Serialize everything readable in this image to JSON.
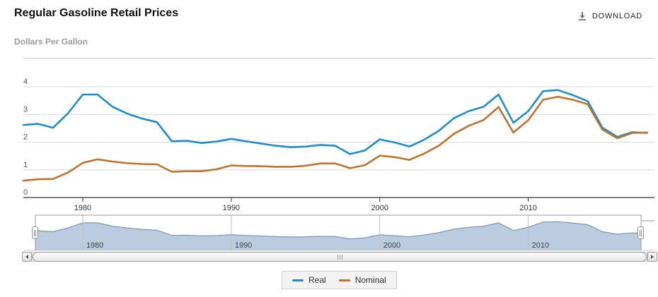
{
  "header": {
    "title": "Regular Gasoline Retail Prices",
    "subtitle": "Dollars Per Gallon",
    "download_label": "DOWNLOAD"
  },
  "colors": {
    "real_line": "#1d8ecd",
    "nominal_line": "#bf732d",
    "navigator_fill": "#b5c6dd",
    "navigator_stroke": "#7b96b5",
    "gridline": "#d8d8d8",
    "axis_line": "#333333",
    "nav_gridline": "#bfbfbf",
    "nav_outline": "#999999"
  },
  "icons": [
    "download-icon",
    "scroll-left-icon",
    "scroll-right-icon",
    "grip-icon"
  ],
  "legend": {
    "items": [
      "Real",
      "Nominal"
    ]
  },
  "chart_data": {
    "type": "line",
    "title": "Regular Gasoline Retail Prices",
    "xlabel": "",
    "ylabel": "Dollars Per Gallon",
    "ylim": [
      0,
      4.2
    ],
    "yticks": [
      0,
      1,
      2,
      3,
      4
    ],
    "xticks": [
      1980,
      1990,
      2000,
      2010
    ],
    "grid": true,
    "legend_position": "bottom",
    "x": [
      1976,
      1977,
      1978,
      1979,
      1980,
      1981,
      1982,
      1983,
      1984,
      1985,
      1986,
      1987,
      1988,
      1989,
      1990,
      1991,
      1992,
      1993,
      1994,
      1995,
      1996,
      1997,
      1998,
      1999,
      2000,
      2001,
      2002,
      2003,
      2004,
      2005,
      2006,
      2007,
      2008,
      2009,
      2010,
      2011,
      2012,
      2013,
      2014,
      2015,
      2016,
      2017,
      2018
    ],
    "series": [
      {
        "name": "Real",
        "color": "#1d8ecd",
        "values": [
          2.62,
          2.66,
          2.52,
          3.04,
          3.72,
          3.72,
          3.28,
          3.03,
          2.85,
          2.72,
          2.03,
          2.05,
          1.97,
          2.02,
          2.12,
          2.03,
          1.95,
          1.87,
          1.82,
          1.84,
          1.9,
          1.87,
          1.57,
          1.7,
          2.1,
          1.99,
          1.84,
          2.09,
          2.42,
          2.87,
          3.12,
          3.28,
          3.72,
          2.7,
          3.12,
          3.84,
          3.88,
          3.7,
          3.48,
          2.52,
          2.19,
          2.36,
          2.33
        ]
      },
      {
        "name": "Nominal",
        "color": "#bf732d",
        "values": [
          0.61,
          0.66,
          0.67,
          0.9,
          1.25,
          1.38,
          1.3,
          1.24,
          1.21,
          1.2,
          0.93,
          0.95,
          0.95,
          1.02,
          1.16,
          1.14,
          1.13,
          1.11,
          1.11,
          1.15,
          1.23,
          1.23,
          1.06,
          1.17,
          1.51,
          1.46,
          1.36,
          1.59,
          1.88,
          2.3,
          2.59,
          2.8,
          3.27,
          2.35,
          2.79,
          3.53,
          3.64,
          3.53,
          3.37,
          2.45,
          2.14,
          2.33,
          2.35
        ]
      }
    ],
    "navigator": {
      "series": "Real",
      "xticks": [
        1980,
        1990,
        2000,
        2010
      ],
      "selected_range": "full"
    }
  }
}
